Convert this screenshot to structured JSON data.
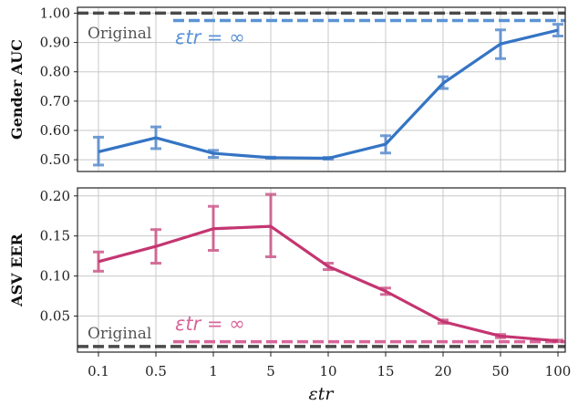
{
  "chart_data": [
    {
      "type": "line",
      "ylabel": "Gender AUC",
      "categories": [
        "0.1",
        "0.5",
        "1",
        "5",
        "10",
        "15",
        "20",
        "50",
        "100"
      ],
      "ylim": [
        0.46,
        1.02
      ],
      "yticks": [
        "0.50",
        "0.60",
        "0.70",
        "0.80",
        "0.90",
        "1.00"
      ],
      "grid": true,
      "color": "#3474c4",
      "values": [
        0.527,
        0.575,
        0.522,
        0.507,
        0.505,
        0.553,
        0.761,
        0.895,
        0.942
      ],
      "err_low": [
        0.482,
        0.538,
        0.508,
        0.505,
        0.502,
        0.523,
        0.743,
        0.845,
        0.922
      ],
      "err_high": [
        0.577,
        0.612,
        0.532,
        0.509,
        0.508,
        0.582,
        0.783,
        0.943,
        0.962
      ],
      "reference_lines": [
        {
          "value": 1.0,
          "color": "#4a4a4a",
          "label": "Original"
        },
        {
          "value": 0.975,
          "color": "#5b93d6",
          "label": "εtr = ∞"
        }
      ]
    },
    {
      "type": "line",
      "ylabel": "ASV EER",
      "xlabel": "εtr",
      "categories": [
        "0.1",
        "0.5",
        "1",
        "5",
        "10",
        "15",
        "20",
        "50",
        "100"
      ],
      "ylim": [
        0.005,
        0.21
      ],
      "yticks": [
        "0.05",
        "0.10",
        "0.15",
        "0.20"
      ],
      "grid": true,
      "color": "#c43571",
      "values": [
        0.118,
        0.137,
        0.159,
        0.162,
        0.112,
        0.081,
        0.043,
        0.025,
        0.019
      ],
      "err_low": [
        0.106,
        0.116,
        0.132,
        0.124,
        0.108,
        0.077,
        0.041,
        0.023,
        0.018
      ],
      "err_high": [
        0.13,
        0.158,
        0.187,
        0.202,
        0.116,
        0.085,
        0.045,
        0.027,
        0.02
      ],
      "reference_lines": [
        {
          "value": 0.012,
          "color": "#4a4a4a",
          "label": "Original"
        },
        {
          "value": 0.018,
          "color": "#d8669a",
          "label": "εtr = ∞"
        }
      ]
    }
  ]
}
